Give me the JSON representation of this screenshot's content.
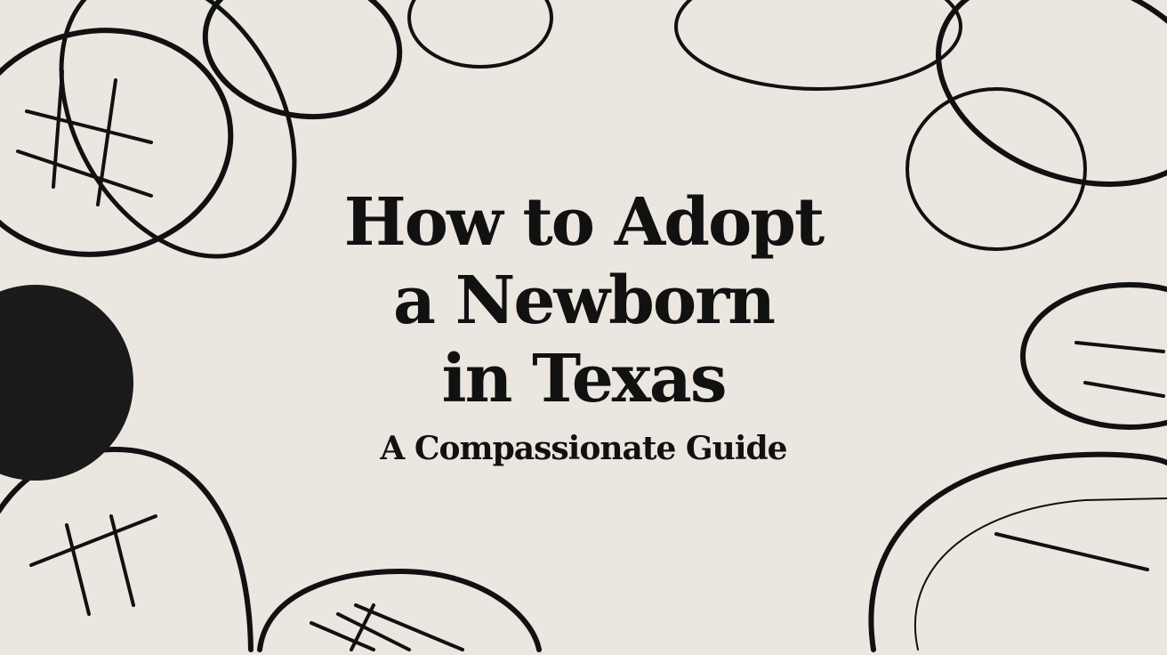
{
  "title_lines": [
    "How to Adopt",
    "a Newborn",
    "in Texas"
  ],
  "subtitle": "A Compassionate Guide",
  "colors": {
    "background": "#ebe6df",
    "ink": "#111111"
  }
}
